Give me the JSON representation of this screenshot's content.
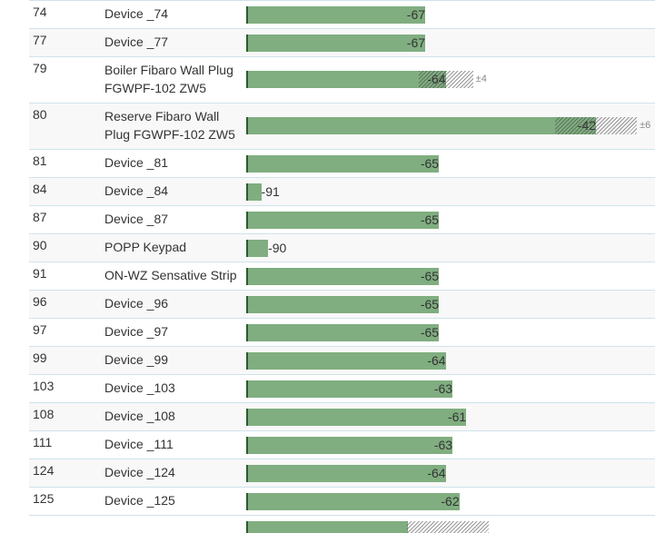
{
  "rows": [
    {
      "id": "74",
      "name": "Device _74",
      "rssi": -67
    },
    {
      "id": "77",
      "name": "Device _77",
      "rssi": -67
    },
    {
      "id": "79",
      "name": "Boiler Fibaro Wall Plug FGWPF-102 ZW5",
      "name_lines": [
        "Boiler Fibaro Wall Plug",
        "FGWPF-102 ZW5"
      ],
      "rssi": -64,
      "variance": "±4"
    },
    {
      "id": "80",
      "name": "Reserve Fibaro Wall Plug FGWPF-102 ZW5",
      "name_lines": [
        "Reserve Fibaro Wall",
        "Plug FGWPF-102 ZW5"
      ],
      "rssi": -42,
      "variance": "±6"
    },
    {
      "id": "81",
      "name": "Device _81",
      "rssi": -65
    },
    {
      "id": "84",
      "name": "Device _84",
      "rssi": -91
    },
    {
      "id": "87",
      "name": "Device _87",
      "rssi": -65
    },
    {
      "id": "90",
      "name": "POPP Keypad",
      "rssi": -90
    },
    {
      "id": "91",
      "name": "ON-WZ Sensative Strip",
      "rssi": -65
    },
    {
      "id": "96",
      "name": "Device _96",
      "rssi": -65
    },
    {
      "id": "97",
      "name": "Device _97",
      "rssi": -65
    },
    {
      "id": "99",
      "name": "Device _99",
      "rssi": -64
    },
    {
      "id": "103",
      "name": "Device _103",
      "rssi": -63
    },
    {
      "id": "108",
      "name": "Device _108",
      "rssi": -61
    },
    {
      "id": "111",
      "name": "Device _111",
      "rssi": -63
    },
    {
      "id": "124",
      "name": "Device _124",
      "rssi": -64
    },
    {
      "id": "125",
      "name": "Device _125",
      "rssi": -62
    }
  ],
  "colors": {
    "bar_fill": "#80ae80",
    "bar_edge": "#2f5a2f",
    "row_border": "#cfe2ec",
    "row_alt_bg": "#f8f8f8"
  }
}
